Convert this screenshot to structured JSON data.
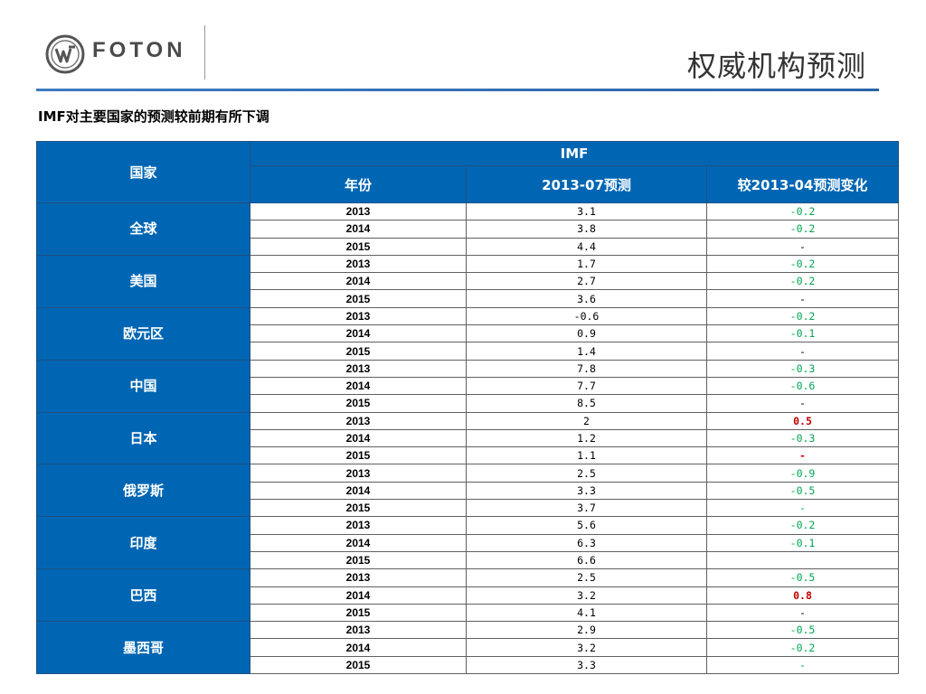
{
  "header": {
    "logo_text": "FOTON",
    "title": "权威机构预测"
  },
  "subtitle": "IMF对主要国家的预测较前期有所下调",
  "table": {
    "col_country": "国家",
    "group_header": "IMF",
    "col_year": "年份",
    "col_forecast": "2013-07预测",
    "col_change": "较2013-04预测变化",
    "rows": [
      {
        "country": "全球",
        "entries": [
          {
            "year": "2013",
            "forecast": "3.1",
            "change": "-0.2",
            "tone": "neg"
          },
          {
            "year": "2014",
            "forecast": "3.8",
            "change": "-0.2",
            "tone": "neg"
          },
          {
            "year": "2015",
            "forecast": "4.4",
            "change": "-",
            "tone": "dash"
          }
        ]
      },
      {
        "country": "美国",
        "entries": [
          {
            "year": "2013",
            "forecast": "1.7",
            "change": "-0.2",
            "tone": "neg"
          },
          {
            "year": "2014",
            "forecast": "2.7",
            "change": "-0.2",
            "tone": "neg"
          },
          {
            "year": "2015",
            "forecast": "3.6",
            "change": "-",
            "tone": "dash"
          }
        ]
      },
      {
        "country": "欧元区",
        "entries": [
          {
            "year": "2013",
            "forecast": "-0.6",
            "change": "-0.2",
            "tone": "neg"
          },
          {
            "year": "2014",
            "forecast": "0.9",
            "change": "-0.1",
            "tone": "neg"
          },
          {
            "year": "2015",
            "forecast": "1.4",
            "change": "-",
            "tone": "dash"
          }
        ]
      },
      {
        "country": "中国",
        "entries": [
          {
            "year": "2013",
            "forecast": "7.8",
            "change": "-0.3",
            "tone": "neg"
          },
          {
            "year": "2014",
            "forecast": "7.7",
            "change": "-0.6",
            "tone": "neg"
          },
          {
            "year": "2015",
            "forecast": "8.5",
            "change": "-",
            "tone": "dash"
          }
        ]
      },
      {
        "country": "日本",
        "entries": [
          {
            "year": "2013",
            "forecast": "2",
            "change": "0.5",
            "tone": "pos"
          },
          {
            "year": "2014",
            "forecast": "1.2",
            "change": "-0.3",
            "tone": "neg"
          },
          {
            "year": "2015",
            "forecast": "1.1",
            "change": "-",
            "tone": "dash-red"
          }
        ]
      },
      {
        "country": "俄罗斯",
        "entries": [
          {
            "year": "2013",
            "forecast": "2.5",
            "change": "-0.9",
            "tone": "neg"
          },
          {
            "year": "2014",
            "forecast": "3.3",
            "change": "-0.5",
            "tone": "neg"
          },
          {
            "year": "2015",
            "forecast": "3.7",
            "change": "-",
            "tone": "dash-green"
          }
        ]
      },
      {
        "country": "印度",
        "entries": [
          {
            "year": "2013",
            "forecast": "5.6",
            "change": "-0.2",
            "tone": "neg"
          },
          {
            "year": "2014",
            "forecast": "6.3",
            "change": "-0.1",
            "tone": "neg"
          },
          {
            "year": "2015",
            "forecast": "6.6",
            "change": "",
            "tone": "dash"
          }
        ]
      },
      {
        "country": "巴西",
        "entries": [
          {
            "year": "2013",
            "forecast": "2.5",
            "change": "-0.5",
            "tone": "neg"
          },
          {
            "year": "2014",
            "forecast": "3.2",
            "change": "0.8",
            "tone": "pos"
          },
          {
            "year": "2015",
            "forecast": "4.1",
            "change": "-",
            "tone": "dash"
          }
        ]
      },
      {
        "country": "墨西哥",
        "entries": [
          {
            "year": "2013",
            "forecast": "2.9",
            "change": "-0.5",
            "tone": "neg"
          },
          {
            "year": "2014",
            "forecast": "3.2",
            "change": "-0.2",
            "tone": "neg"
          },
          {
            "year": "2015",
            "forecast": "3.3",
            "change": "-",
            "tone": "dash-green"
          }
        ]
      }
    ]
  },
  "colors": {
    "header_blue": "#0066b3",
    "negative_green": "#00a651",
    "positive_red": "#c00000",
    "rule_blue": "#3d7cc0"
  },
  "icons": {
    "logo_emblem": "foton-emblem-icon"
  }
}
